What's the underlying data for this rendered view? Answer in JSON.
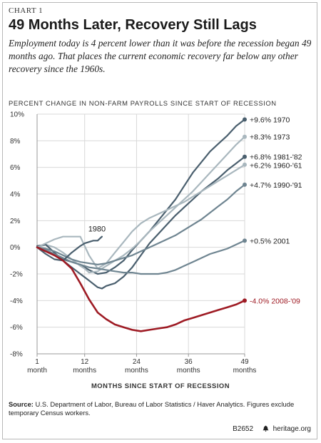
{
  "header": {
    "chart_label": "CHART 1",
    "title": "49 Months Later, Recovery Still Lags",
    "subtitle": "Employment today is 4 percent lower than it was before the recession began 49 months ago. That places the current economic recovery far below any other recovery since the 1960s."
  },
  "footer": {
    "source_label": "Source:",
    "source_text": " U.S. Department of Labor, Bureau of Labor Statistics / Haver Analytics. Figures exclude temporary Census workers.",
    "code": "B2652",
    "site": "heritage.org",
    "logo_icon": "liberty-bell-icon"
  },
  "chart_data": {
    "type": "line",
    "ylabel": "PERCENT CHANGE IN NON-FARM PAYROLLS SINCE START OF RECESSION",
    "xlabel": "MONTHS SINCE START OF RECESSION",
    "xlim": [
      1,
      49
    ],
    "ylim": [
      -8,
      10
    ],
    "grid": true,
    "x_ticks": [
      {
        "value": 1,
        "label": "1",
        "unit": "month"
      },
      {
        "value": 12,
        "label": "12",
        "unit": "months"
      },
      {
        "value": 24,
        "label": "24",
        "unit": "months"
      },
      {
        "value": 36,
        "label": "36",
        "unit": "months"
      },
      {
        "value": 49,
        "label": "49",
        "unit": "months"
      }
    ],
    "y_ticks": [
      {
        "value": 10,
        "label": "10%"
      },
      {
        "value": 8,
        "label": "8%"
      },
      {
        "value": 6,
        "label": "6%"
      },
      {
        "value": 4,
        "label": "4%"
      },
      {
        "value": 2,
        "label": "2%"
      },
      {
        "value": 0,
        "label": "0%"
      },
      {
        "value": -2,
        "label": "-2%"
      },
      {
        "value": -4,
        "label": "-4%"
      },
      {
        "value": -6,
        "label": "-6%"
      },
      {
        "value": -8,
        "label": "-8%"
      }
    ],
    "colors": {
      "recession_2008": "#9e1b24",
      "dark": "#4a5f6e",
      "mid": "#6f8591",
      "light": "#a9b7be",
      "grid": "#d9d9d9",
      "axis": "#999999"
    },
    "series": [
      {
        "name": "1970",
        "end_label": "+9.6% 1970",
        "color": "#4a5f6e",
        "marker": true,
        "x": [
          1,
          3,
          5,
          7,
          9,
          11,
          13,
          15,
          17,
          19,
          21,
          23,
          25,
          27,
          29,
          31,
          33,
          35,
          37,
          39,
          41,
          43,
          45,
          47,
          49
        ],
        "y": [
          0.0,
          -0.3,
          -0.5,
          -0.9,
          -1.1,
          -1.3,
          -1.7,
          -2.0,
          -1.9,
          -1.5,
          -1.0,
          -0.2,
          0.5,
          1.2,
          2.0,
          2.8,
          3.6,
          4.6,
          5.6,
          6.4,
          7.2,
          7.8,
          8.4,
          9.1,
          9.6
        ]
      },
      {
        "name": "1973",
        "end_label": "+8.3% 1973",
        "color": "#a9b7be",
        "marker": true,
        "x": [
          1,
          3,
          5,
          7,
          9,
          11,
          12,
          13,
          15,
          17,
          19,
          21,
          23,
          25,
          27,
          29,
          31,
          33,
          35,
          37,
          39,
          41,
          43,
          45,
          47,
          49
        ],
        "y": [
          0.0,
          0.2,
          0.0,
          -0.4,
          -0.9,
          -1.4,
          -1.6,
          -1.9,
          -1.8,
          -1.4,
          -1.0,
          -0.6,
          -0.1,
          0.5,
          1.2,
          1.8,
          2.4,
          3.0,
          3.6,
          4.2,
          4.9,
          5.6,
          6.3,
          7.0,
          7.7,
          8.3
        ]
      },
      {
        "name": "1981-'82",
        "end_label": "+6.8% 1981-'82",
        "color": "#4a5f6e",
        "marker": true,
        "x": [
          1,
          3,
          5,
          7,
          9,
          11,
          13,
          15,
          16,
          17,
          19,
          21,
          23,
          25,
          27,
          29,
          31,
          33,
          35,
          37,
          39,
          41,
          43,
          45,
          47,
          49
        ],
        "y": [
          0.1,
          0.2,
          -0.4,
          -1.0,
          -1.5,
          -2.0,
          -2.5,
          -3.0,
          -3.1,
          -2.9,
          -2.7,
          -2.2,
          -1.5,
          -0.6,
          0.3,
          1.0,
          1.7,
          2.4,
          3.0,
          3.6,
          4.2,
          4.7,
          5.2,
          5.8,
          6.3,
          6.8
        ]
      },
      {
        "name": "1960-'61",
        "end_label": "+6.2% 1960-'61",
        "color": "#a9b7be",
        "marker": true,
        "x": [
          1,
          3,
          5,
          7,
          9,
          11,
          13,
          15,
          17,
          19,
          21,
          23,
          25,
          27,
          29,
          31,
          33,
          35,
          37,
          39,
          41,
          43,
          45,
          47,
          49
        ],
        "y": [
          0.0,
          0.3,
          0.6,
          0.8,
          0.8,
          0.8,
          -0.6,
          -1.6,
          -1.2,
          -0.4,
          0.4,
          1.2,
          1.8,
          2.2,
          2.5,
          2.8,
          3.1,
          3.4,
          3.8,
          4.2,
          4.6,
          5.0,
          5.4,
          5.8,
          6.2
        ]
      },
      {
        "name": "1990-'91",
        "end_label": "+4.7% 1990-'91",
        "color": "#6f8591",
        "marker": true,
        "x": [
          1,
          3,
          5,
          7,
          9,
          11,
          13,
          15,
          17,
          19,
          21,
          23,
          25,
          27,
          29,
          31,
          33,
          35,
          37,
          39,
          41,
          43,
          45,
          47,
          49
        ],
        "y": [
          0.0,
          -0.1,
          -0.3,
          -0.6,
          -0.9,
          -1.1,
          -1.2,
          -1.3,
          -1.2,
          -1.0,
          -0.8,
          -0.6,
          -0.3,
          0.0,
          0.3,
          0.6,
          0.9,
          1.3,
          1.7,
          2.1,
          2.6,
          3.1,
          3.6,
          4.2,
          4.7
        ]
      },
      {
        "name": "2001",
        "end_label": "+0.5% 2001",
        "color": "#6f8591",
        "marker": true,
        "x": [
          1,
          3,
          5,
          7,
          9,
          11,
          13,
          15,
          17,
          19,
          21,
          23,
          25,
          27,
          29,
          31,
          33,
          35,
          37,
          39,
          41,
          43,
          45,
          47,
          49
        ],
        "y": [
          0.0,
          -0.2,
          -0.5,
          -0.8,
          -1.1,
          -1.3,
          -1.5,
          -1.6,
          -1.7,
          -1.8,
          -1.9,
          -1.9,
          -2.0,
          -2.0,
          -2.0,
          -1.9,
          -1.7,
          -1.4,
          -1.1,
          -0.8,
          -0.5,
          -0.3,
          -0.1,
          0.2,
          0.5
        ]
      },
      {
        "name": "1980",
        "end_label": "1980",
        "color": "#4a5f6e",
        "marker": false,
        "label_pos": "above-end",
        "x": [
          1,
          3,
          5,
          7,
          9,
          11,
          12,
          13,
          14,
          15,
          16
        ],
        "y": [
          0.0,
          -0.5,
          -0.9,
          -1.0,
          -0.4,
          0.1,
          0.3,
          0.4,
          0.5,
          0.5,
          0.8
        ]
      },
      {
        "name": "2008-'09",
        "end_label": "-4.0%  2008-'09",
        "color": "#9e1b24",
        "marker": true,
        "emphasis": true,
        "x": [
          1,
          3,
          5,
          7,
          9,
          11,
          13,
          15,
          17,
          19,
          21,
          23,
          25,
          27,
          29,
          31,
          33,
          35,
          37,
          39,
          41,
          43,
          45,
          47,
          49
        ],
        "y": [
          0.0,
          -0.3,
          -0.6,
          -1.0,
          -1.6,
          -2.7,
          -3.9,
          -4.9,
          -5.4,
          -5.8,
          -6.0,
          -6.2,
          -6.3,
          -6.2,
          -6.1,
          -6.0,
          -5.8,
          -5.5,
          -5.3,
          -5.1,
          -4.9,
          -4.7,
          -4.5,
          -4.3,
          -4.0
        ]
      }
    ]
  }
}
